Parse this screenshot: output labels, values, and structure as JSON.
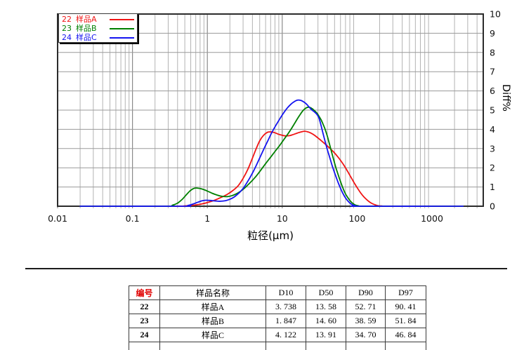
{
  "chart_data": {
    "type": "line",
    "title": "",
    "x_axis": {
      "label": "粒径(μm)",
      "scale": "log",
      "min": 0.01,
      "max": 4800,
      "tick_labels": [
        "0.01",
        "0.1",
        "1",
        "10",
        "100",
        "1000"
      ],
      "tick_values": [
        0.01,
        0.1,
        1,
        10,
        100,
        1000
      ]
    },
    "y_axis": {
      "label": "Diff%",
      "side": "right",
      "min": 0,
      "max": 10,
      "tick_labels": [
        "0",
        "1",
        "2",
        "3",
        "4",
        "5",
        "6",
        "7",
        "8",
        "9",
        "10"
      ]
    },
    "grid": true,
    "legend": {
      "position": "top-left",
      "entries": [
        {
          "id": "22",
          "label": "样品A",
          "color": "#f01414"
        },
        {
          "id": "23",
          "label": "样品B",
          "color": "#008000"
        },
        {
          "id": "24",
          "label": "样品C",
          "color": "#1414f0"
        }
      ]
    },
    "series": [
      {
        "id": "22",
        "name": "样品A",
        "color": "#f01414",
        "points": [
          [
            0.02,
            0
          ],
          [
            0.35,
            0
          ],
          [
            0.5,
            0.02
          ],
          [
            0.65,
            0.05
          ],
          [
            0.8,
            0.1
          ],
          [
            1.0,
            0.19
          ],
          [
            1.25,
            0.31
          ],
          [
            1.55,
            0.47
          ],
          [
            1.85,
            0.62
          ],
          [
            2.2,
            0.82
          ],
          [
            2.6,
            1.08
          ],
          [
            3.0,
            1.45
          ],
          [
            3.5,
            1.95
          ],
          [
            4.0,
            2.5
          ],
          [
            4.5,
            3.0
          ],
          [
            5.0,
            3.4
          ],
          [
            5.6,
            3.68
          ],
          [
            6.3,
            3.84
          ],
          [
            7.0,
            3.87
          ],
          [
            8.0,
            3.82
          ],
          [
            9.0,
            3.74
          ],
          [
            10.0,
            3.69
          ],
          [
            11.0,
            3.66
          ],
          [
            12.5,
            3.67
          ],
          [
            14.0,
            3.73
          ],
          [
            16.0,
            3.81
          ],
          [
            18.0,
            3.87
          ],
          [
            20.0,
            3.9
          ],
          [
            22.0,
            3.87
          ],
          [
            24.0,
            3.81
          ],
          [
            27.0,
            3.69
          ],
          [
            30.0,
            3.55
          ],
          [
            33.0,
            3.42
          ],
          [
            37.0,
            3.25
          ],
          [
            41.0,
            3.1
          ],
          [
            45.0,
            2.95
          ],
          [
            50.0,
            2.77
          ],
          [
            55.0,
            2.58
          ],
          [
            61.0,
            2.35
          ],
          [
            68.0,
            2.08
          ],
          [
            75.0,
            1.8
          ],
          [
            83.0,
            1.5
          ],
          [
            92.0,
            1.2
          ],
          [
            102.0,
            0.92
          ],
          [
            113.0,
            0.66
          ],
          [
            125.0,
            0.46
          ],
          [
            140.0,
            0.28
          ],
          [
            155.0,
            0.16
          ],
          [
            172.0,
            0.08
          ],
          [
            190.0,
            0.03
          ],
          [
            215.0,
            0.01
          ],
          [
            240.0,
            0
          ],
          [
            2600,
            0
          ]
        ]
      },
      {
        "id": "23",
        "name": "样品B",
        "color": "#008000",
        "points": [
          [
            0.02,
            0
          ],
          [
            0.28,
            0
          ],
          [
            0.34,
            0.05
          ],
          [
            0.4,
            0.16
          ],
          [
            0.46,
            0.35
          ],
          [
            0.52,
            0.58
          ],
          [
            0.58,
            0.78
          ],
          [
            0.64,
            0.9
          ],
          [
            0.7,
            0.95
          ],
          [
            0.8,
            0.92
          ],
          [
            0.9,
            0.86
          ],
          [
            1.0,
            0.79
          ],
          [
            1.15,
            0.68
          ],
          [
            1.35,
            0.58
          ],
          [
            1.6,
            0.51
          ],
          [
            1.85,
            0.5
          ],
          [
            2.1,
            0.54
          ],
          [
            2.4,
            0.63
          ],
          [
            2.8,
            0.79
          ],
          [
            3.2,
            0.97
          ],
          [
            3.7,
            1.21
          ],
          [
            4.3,
            1.48
          ],
          [
            5.0,
            1.8
          ],
          [
            6.0,
            2.22
          ],
          [
            7.0,
            2.55
          ],
          [
            8.0,
            2.85
          ],
          [
            9.0,
            3.1
          ],
          [
            10.0,
            3.35
          ],
          [
            11.5,
            3.68
          ],
          [
            13.0,
            3.98
          ],
          [
            15.0,
            4.38
          ],
          [
            17.0,
            4.72
          ],
          [
            19.0,
            4.98
          ],
          [
            21.0,
            5.12
          ],
          [
            23.0,
            5.15
          ],
          [
            25.0,
            5.08
          ],
          [
            27.0,
            4.97
          ],
          [
            29.0,
            4.85
          ],
          [
            31.0,
            4.68
          ],
          [
            33.0,
            4.5
          ],
          [
            35.0,
            4.28
          ],
          [
            37.0,
            4.05
          ],
          [
            40.0,
            3.65
          ],
          [
            44.0,
            3.05
          ],
          [
            48.0,
            2.5
          ],
          [
            52.0,
            2.02
          ],
          [
            56.0,
            1.62
          ],
          [
            60.0,
            1.28
          ],
          [
            65.0,
            0.92
          ],
          [
            70.0,
            0.64
          ],
          [
            76.0,
            0.42
          ],
          [
            82.0,
            0.25
          ],
          [
            88.0,
            0.14
          ],
          [
            95.0,
            0.06
          ],
          [
            105.0,
            0.02
          ],
          [
            120.0,
            0
          ],
          [
            2600,
            0
          ]
        ]
      },
      {
        "id": "24",
        "name": "样品C",
        "color": "#1414f0",
        "points": [
          [
            0.02,
            0
          ],
          [
            0.45,
            0
          ],
          [
            0.55,
            0.04
          ],
          [
            0.65,
            0.12
          ],
          [
            0.75,
            0.21
          ],
          [
            0.85,
            0.28
          ],
          [
            0.95,
            0.31
          ],
          [
            1.1,
            0.3
          ],
          [
            1.3,
            0.27
          ],
          [
            1.5,
            0.26
          ],
          [
            1.75,
            0.29
          ],
          [
            2.0,
            0.36
          ],
          [
            2.3,
            0.49
          ],
          [
            2.7,
            0.72
          ],
          [
            3.1,
            1.0
          ],
          [
            3.6,
            1.4
          ],
          [
            4.1,
            1.8
          ],
          [
            4.6,
            2.2
          ],
          [
            5.2,
            2.65
          ],
          [
            5.8,
            3.05
          ],
          [
            6.5,
            3.45
          ],
          [
            7.3,
            3.85
          ],
          [
            8.2,
            4.2
          ],
          [
            9.2,
            4.52
          ],
          [
            10.3,
            4.82
          ],
          [
            11.5,
            5.08
          ],
          [
            13.0,
            5.3
          ],
          [
            14.5,
            5.44
          ],
          [
            16.0,
            5.52
          ],
          [
            17.5,
            5.51
          ],
          [
            19.0,
            5.45
          ],
          [
            21.0,
            5.32
          ],
          [
            23.0,
            5.15
          ],
          [
            25.0,
            5.0
          ],
          [
            27.0,
            4.9
          ],
          [
            29.0,
            4.78
          ],
          [
            31.0,
            4.58
          ],
          [
            33.0,
            4.2
          ],
          [
            35.0,
            3.8
          ],
          [
            37.5,
            3.35
          ],
          [
            40.0,
            2.95
          ],
          [
            43.0,
            2.55
          ],
          [
            47.0,
            2.05
          ],
          [
            51.0,
            1.65
          ],
          [
            55.0,
            1.3
          ],
          [
            59.0,
            1.0
          ],
          [
            64.0,
            0.7
          ],
          [
            69.0,
            0.47
          ],
          [
            75.0,
            0.28
          ],
          [
            81.0,
            0.15
          ],
          [
            88.0,
            0.06
          ],
          [
            96.0,
            0.02
          ],
          [
            108.0,
            0
          ],
          [
            2600,
            0
          ]
        ]
      }
    ]
  },
  "table": {
    "headers": [
      "编号",
      "样品名称",
      "D10",
      "D50",
      "D90",
      "D97"
    ],
    "rows": [
      {
        "id": "22",
        "name": "样品A",
        "d10": "3. 738",
        "d50": "13. 58",
        "d90": "52. 71",
        "d97": "90. 41"
      },
      {
        "id": "23",
        "name": "样品B",
        "d10": "1. 847",
        "d50": "14. 60",
        "d90": "38. 59",
        "d97": "51. 84"
      },
      {
        "id": "24",
        "name": "样品C",
        "d10": "4. 122",
        "d50": "13. 91",
        "d90": "34. 70",
        "d97": "46. 84"
      }
    ]
  },
  "colors": {
    "grid_major": "#8a8a8a",
    "grid_minor": "#b3b3b3",
    "grid_horizontal": "#9a9a9a",
    "axis_border": "#2b2b2b",
    "header_id_text": "#e00000"
  }
}
